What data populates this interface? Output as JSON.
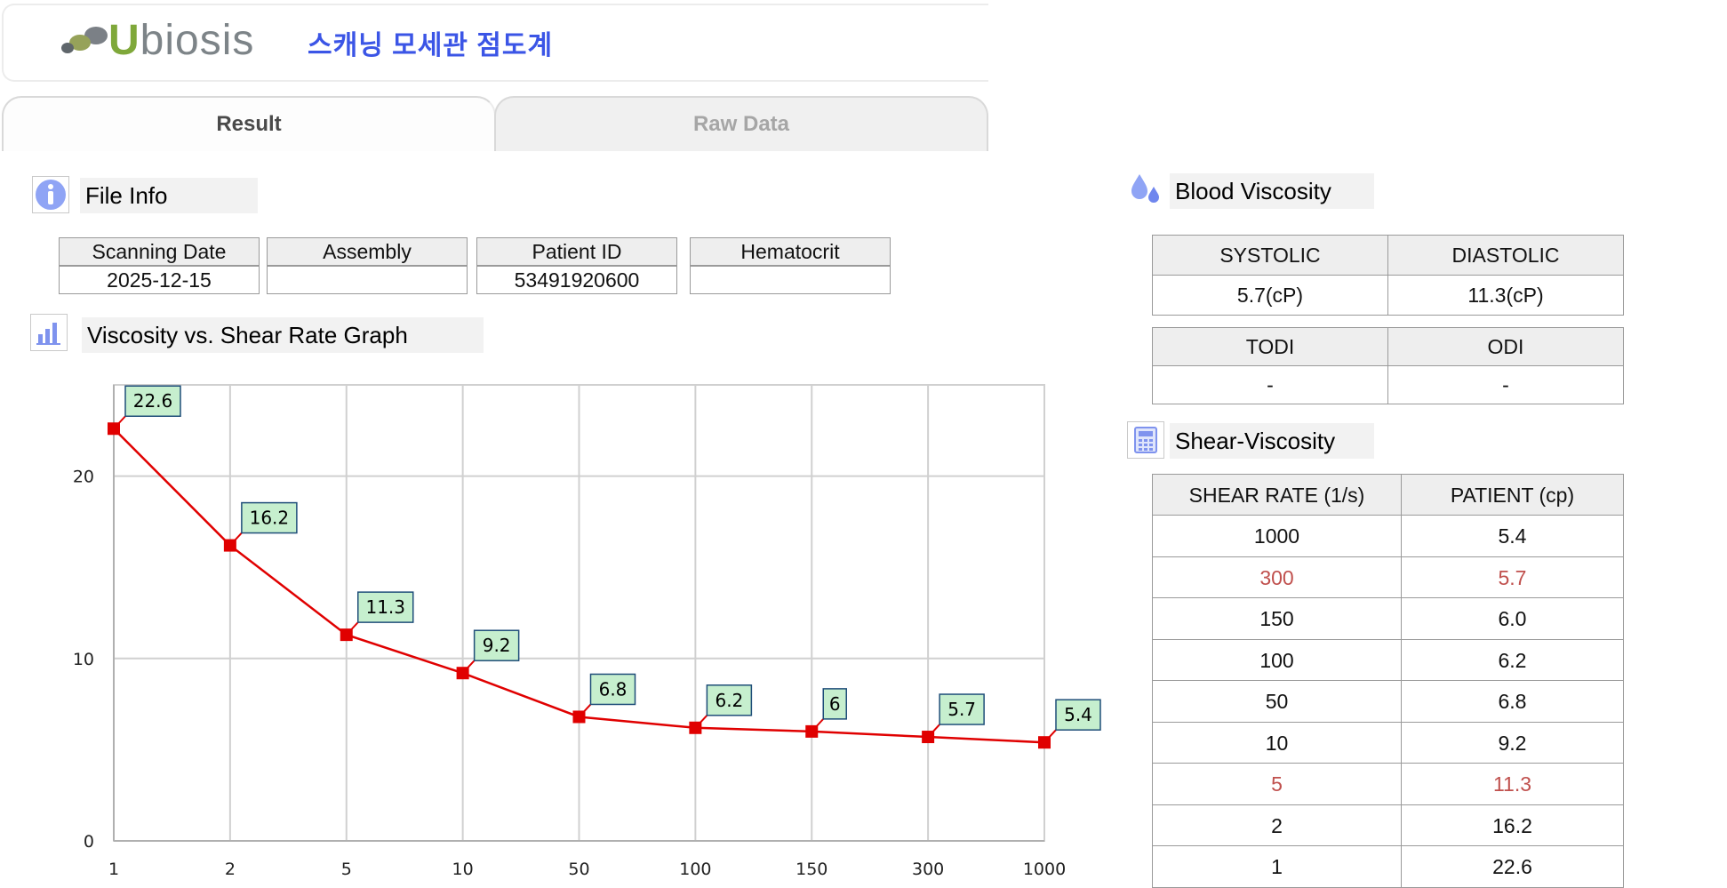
{
  "header": {
    "logo_text": "Ubiosis",
    "app_title": "스캐닝 모세관 점도계"
  },
  "tabs": [
    {
      "label": "Result",
      "active": true
    },
    {
      "label": "Raw Data",
      "active": false
    }
  ],
  "file_info": {
    "title": "File Info",
    "icon": "info-icon",
    "columns": [
      "Scanning Date",
      "Assembly",
      "Patient ID",
      "Hematocrit"
    ],
    "values": [
      "2025-12-15",
      "",
      "53491920600",
      ""
    ]
  },
  "graph": {
    "title": "Viscosity vs. Shear Rate Graph",
    "icon": "bar-chart-icon"
  },
  "blood_viscosity": {
    "title": "Blood Viscosity",
    "icon": "blood-drop-icon",
    "table1": {
      "columns": [
        "SYSTOLIC",
        "DIASTOLIC"
      ],
      "values": [
        "5.7(cP)",
        "11.3(cP)"
      ]
    },
    "table2": {
      "columns": [
        "TODI",
        "ODI"
      ],
      "values": [
        "-",
        "-"
      ]
    }
  },
  "shear_viscosity": {
    "title": "Shear-Viscosity",
    "icon": "calculator-icon",
    "columns": [
      "SHEAR RATE (1/s)",
      "PATIENT (cp)"
    ],
    "rows": [
      {
        "rate": "1000",
        "patient": "5.4",
        "highlight": false
      },
      {
        "rate": "300",
        "patient": "5.7",
        "highlight": true
      },
      {
        "rate": "150",
        "patient": "6.0",
        "highlight": false
      },
      {
        "rate": "100",
        "patient": "6.2",
        "highlight": false
      },
      {
        "rate": "50",
        "patient": "6.8",
        "highlight": false
      },
      {
        "rate": "10",
        "patient": "9.2",
        "highlight": false
      },
      {
        "rate": "5",
        "patient": "11.3",
        "highlight": true
      },
      {
        "rate": "2",
        "patient": "16.2",
        "highlight": false
      },
      {
        "rate": "1",
        "patient": "22.6",
        "highlight": false
      }
    ],
    "highlight_color": "#c0504d"
  },
  "chart_data": {
    "type": "line",
    "categories": [
      "1",
      "2",
      "5",
      "10",
      "50",
      "100",
      "150",
      "300",
      "1000"
    ],
    "values": [
      22.6,
      16.2,
      11.3,
      9.2,
      6.8,
      6.2,
      6,
      5.7,
      5.4
    ],
    "data_labels": [
      "22.6",
      "16.2",
      "11.3",
      "9.2",
      "6.8",
      "6.2",
      "6",
      "5.7",
      "5.4"
    ],
    "y_ticks": [
      "0",
      "10",
      "20"
    ],
    "ylim": [
      0,
      25
    ],
    "xlabel": "",
    "ylabel": "",
    "grid": true,
    "series_color": "#e00000",
    "label_fill": "#c6efce",
    "label_border": "#1f4e79"
  }
}
